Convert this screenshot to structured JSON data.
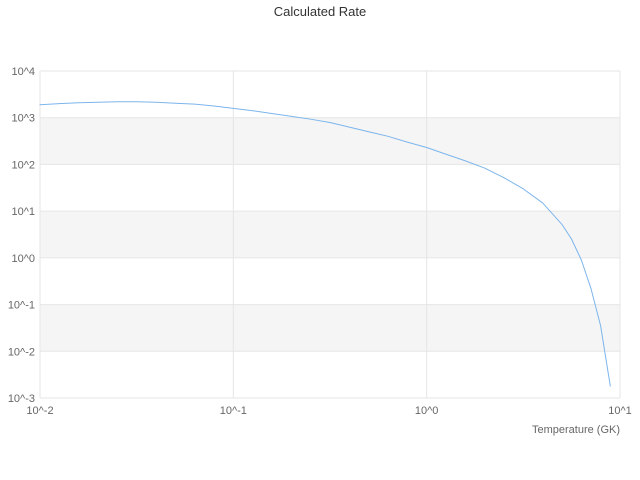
{
  "title": "Calculated Rate",
  "chart_data": {
    "type": "line",
    "title": "Calculated Rate",
    "xlabel": "Temperature (GK)",
    "ylabel": "",
    "x_scale": "log",
    "y_scale": "log",
    "xlim": [
      0.01,
      10
    ],
    "ylim": [
      0.001,
      10000
    ],
    "x_ticks": [
      0.01,
      0.1,
      1,
      10
    ],
    "x_tick_labels": [
      "10^-2",
      "10^-1",
      "10^0",
      "10^1"
    ],
    "y_ticks": [
      0.001,
      0.01,
      0.1,
      1,
      10,
      100,
      1000,
      10000
    ],
    "y_tick_labels": [
      "10^-3",
      "10^-2",
      "10^-1",
      "10^0",
      "10^1",
      "10^2",
      "10^3",
      "10^4"
    ],
    "grid": true,
    "legend": false,
    "plot_bands": [
      [
        0.01,
        0.1
      ],
      [
        1,
        10
      ],
      [
        100,
        1000
      ]
    ],
    "plot_band_color": "#f5f5f5",
    "grid_color": "#e6e6e6",
    "series": [
      {
        "name": "Calculated Rate",
        "color": "#7cb5ec",
        "points": [
          [
            0.01,
            1900
          ],
          [
            0.0126,
            2000
          ],
          [
            0.0158,
            2090
          ],
          [
            0.02,
            2140
          ],
          [
            0.0251,
            2190
          ],
          [
            0.0316,
            2190
          ],
          [
            0.0398,
            2140
          ],
          [
            0.0501,
            2040
          ],
          [
            0.0631,
            1950
          ],
          [
            0.0794,
            1780
          ],
          [
            0.1,
            1580
          ],
          [
            0.126,
            1410
          ],
          [
            0.158,
            1230
          ],
          [
            0.2,
            1070
          ],
          [
            0.251,
            930
          ],
          [
            0.316,
            790
          ],
          [
            0.398,
            630
          ],
          [
            0.501,
            500
          ],
          [
            0.631,
            400
          ],
          [
            0.794,
            300
          ],
          [
            1.0,
            230
          ],
          [
            1.26,
            165
          ],
          [
            1.58,
            120
          ],
          [
            2.0,
            83
          ],
          [
            2.51,
            52
          ],
          [
            3.16,
            30
          ],
          [
            3.98,
            15
          ],
          [
            5.01,
            5.2
          ],
          [
            5.62,
            2.5
          ],
          [
            6.31,
            0.9
          ],
          [
            7.08,
            0.22
          ],
          [
            7.94,
            0.035
          ],
          [
            8.91,
            0.0018
          ]
        ]
      }
    ]
  }
}
